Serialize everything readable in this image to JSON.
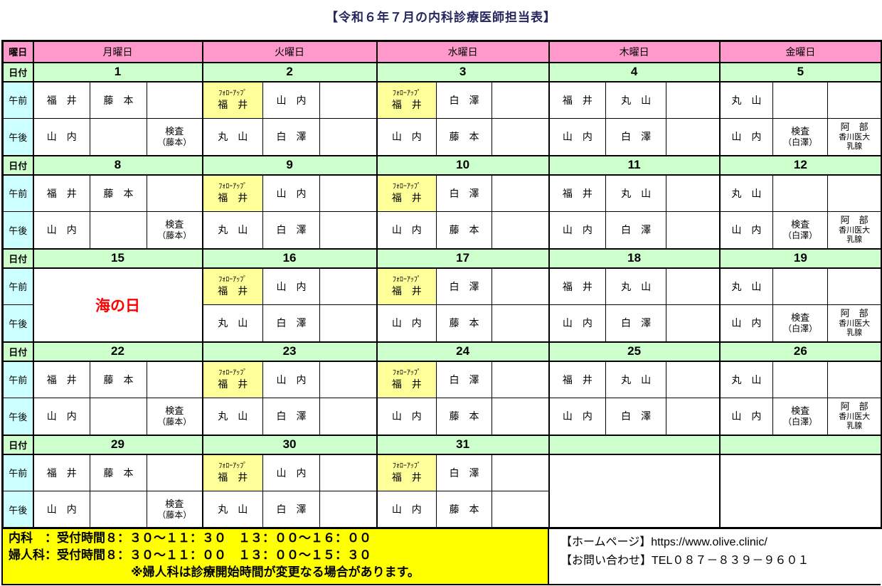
{
  "title": "【令和６年７月の内科診療医師担当表】",
  "labels": {
    "weekday": "曜日",
    "date": "日付",
    "am": "午前",
    "pm": "午後"
  },
  "weekday_headers": [
    "月曜日",
    "火曜日",
    "水曜日",
    "木曜日",
    "金曜日"
  ],
  "colors": {
    "header_pink": "#ff99cc",
    "date_green": "#ccffcc",
    "ampm_cyan": "#ccffff",
    "followup_yellow": "#ffff99",
    "footer_yellow": "#ffff00",
    "holiday_red": "#ff0000",
    "title_navy": "#26265e"
  },
  "weeks": [
    {
      "dates": [
        "1",
        "2",
        "3",
        "4",
        "5"
      ],
      "days": [
        {
          "am": [
            {
              "m": "福　井"
            },
            {
              "m": "藤　本"
            },
            {}
          ],
          "pm": [
            {
              "m": "山　内"
            },
            {},
            {
              "m": "検査",
              "s": "（藤本）"
            }
          ]
        },
        {
          "am": [
            {
              "t": "ﾌｫﾛｰｱｯﾌﾟ",
              "m": "福　井",
              "y": true
            },
            {
              "m": "山　内"
            },
            {}
          ],
          "pm": [
            {
              "m": "丸　山"
            },
            {
              "m": "白　澤"
            },
            {}
          ]
        },
        {
          "am": [
            {
              "t": "ﾌｫﾛｰｱｯﾌﾟ",
              "m": "福　井",
              "y": true
            },
            {
              "m": "白　澤"
            },
            {}
          ],
          "pm": [
            {
              "m": "山　内"
            },
            {
              "m": "藤　本"
            },
            {}
          ]
        },
        {
          "am": [
            {
              "m": "福　井"
            },
            {
              "m": "丸　山"
            },
            {}
          ],
          "pm": [
            {
              "m": "山　内"
            },
            {
              "m": "白　澤"
            },
            {}
          ]
        },
        {
          "am": [
            {
              "m": "丸　山"
            },
            {},
            {}
          ],
          "pm": [
            {
              "m": "山　内"
            },
            {
              "m": "検査",
              "s": "（白澤）"
            },
            {
              "lines": [
                "阿　部",
                "香川医大",
                "乳腺"
              ]
            }
          ]
        }
      ]
    },
    {
      "dates": [
        "8",
        "9",
        "10",
        "11",
        "12"
      ],
      "days": [
        {
          "am": [
            {
              "m": "福　井"
            },
            {
              "m": "藤　本"
            },
            {}
          ],
          "pm": [
            {
              "m": "山　内"
            },
            {},
            {
              "m": "検査",
              "s": "（藤本）"
            }
          ]
        },
        {
          "am": [
            {
              "t": "ﾌｫﾛｰｱｯﾌﾟ",
              "m": "福　井",
              "y": true
            },
            {
              "m": "山　内"
            },
            {}
          ],
          "pm": [
            {
              "m": "丸　山"
            },
            {
              "m": "白　澤"
            },
            {}
          ]
        },
        {
          "am": [
            {
              "t": "ﾌｫﾛｰｱｯﾌﾟ",
              "m": "福　井",
              "y": true
            },
            {
              "m": "白　澤"
            },
            {}
          ],
          "pm": [
            {
              "m": "山　内"
            },
            {
              "m": "藤　本"
            },
            {}
          ]
        },
        {
          "am": [
            {
              "m": "福　井"
            },
            {
              "m": "丸　山"
            },
            {}
          ],
          "pm": [
            {
              "m": "山　内"
            },
            {
              "m": "白　澤"
            },
            {}
          ]
        },
        {
          "am": [
            {
              "m": "丸　山"
            },
            {},
            {}
          ],
          "pm": [
            {
              "m": "山　内"
            },
            {
              "m": "検査",
              "s": "（白澤）"
            },
            {
              "lines": [
                "阿　部",
                "香川医大",
                "乳腺"
              ]
            }
          ]
        }
      ]
    },
    {
      "dates": [
        "15",
        "16",
        "17",
        "18",
        "19"
      ],
      "days": [
        {
          "holiday": "海の日"
        },
        {
          "am": [
            {
              "t": "ﾌｫﾛｰｱｯﾌﾟ",
              "m": "福　井",
              "y": true
            },
            {
              "m": "山　内"
            },
            {}
          ],
          "pm": [
            {
              "m": "丸　山"
            },
            {
              "m": "白　澤"
            },
            {}
          ]
        },
        {
          "am": [
            {
              "t": "ﾌｫﾛｰｱｯﾌﾟ",
              "m": "福　井",
              "y": true
            },
            {
              "m": "白　澤"
            },
            {}
          ],
          "pm": [
            {
              "m": "山　内"
            },
            {
              "m": "藤　本"
            },
            {}
          ]
        },
        {
          "am": [
            {
              "m": "福　井"
            },
            {
              "m": "丸　山"
            },
            {}
          ],
          "pm": [
            {
              "m": "山　内"
            },
            {
              "m": "白　澤"
            },
            {}
          ]
        },
        {
          "am": [
            {
              "m": "丸　山"
            },
            {},
            {}
          ],
          "pm": [
            {
              "m": "山　内"
            },
            {
              "m": "検査",
              "s": "（白澤）"
            },
            {
              "lines": [
                "阿　部",
                "香川医大",
                "乳腺"
              ]
            }
          ]
        }
      ]
    },
    {
      "dates": [
        "22",
        "23",
        "24",
        "25",
        "26"
      ],
      "days": [
        {
          "am": [
            {
              "m": "福　井"
            },
            {
              "m": "藤　本"
            },
            {}
          ],
          "pm": [
            {
              "m": "山　内"
            },
            {},
            {
              "m": "検査",
              "s": "（藤本）"
            }
          ]
        },
        {
          "am": [
            {
              "t": "ﾌｫﾛｰｱｯﾌﾟ",
              "m": "福　井",
              "y": true
            },
            {
              "m": "山　内"
            },
            {}
          ],
          "pm": [
            {
              "m": "丸　山"
            },
            {
              "m": "白　澤"
            },
            {}
          ]
        },
        {
          "am": [
            {
              "t": "ﾌｫﾛｰｱｯﾌﾟ",
              "m": "福　井",
              "y": true
            },
            {
              "m": "白　澤"
            },
            {}
          ],
          "pm": [
            {
              "m": "山　内"
            },
            {
              "m": "藤　本"
            },
            {}
          ]
        },
        {
          "am": [
            {
              "m": "福　井"
            },
            {
              "m": "丸　山"
            },
            {}
          ],
          "pm": [
            {
              "m": "山　内"
            },
            {
              "m": "白　澤"
            },
            {}
          ]
        },
        {
          "am": [
            {
              "m": "丸　山"
            },
            {},
            {}
          ],
          "pm": [
            {
              "m": "山　内"
            },
            {
              "m": "検査",
              "s": "（白澤）"
            },
            {
              "lines": [
                "阿　部",
                "香川医大",
                "乳腺"
              ]
            }
          ]
        }
      ]
    },
    {
      "dates": [
        "29",
        "30",
        "31",
        "",
        ""
      ],
      "days": [
        {
          "am": [
            {
              "m": "福　井"
            },
            {
              "m": "藤　本"
            },
            {}
          ],
          "pm": [
            {
              "m": "山　内"
            },
            {},
            {
              "m": "検査",
              "s": "（藤本）"
            }
          ]
        },
        {
          "am": [
            {
              "t": "ﾌｫﾛｰｱｯﾌﾟ",
              "m": "福　井",
              "y": true
            },
            {
              "m": "山　内"
            },
            {}
          ],
          "pm": [
            {
              "m": "丸　山"
            },
            {
              "m": "白　澤"
            },
            {}
          ]
        },
        {
          "am": [
            {
              "t": "ﾌｫﾛｰｱｯﾌﾟ",
              "m": "福　井",
              "y": true
            },
            {
              "m": "白　澤"
            },
            {}
          ],
          "pm": [
            {
              "m": "山　内"
            },
            {
              "m": "藤　本"
            },
            {}
          ]
        },
        {
          "merged_empty": true
        },
        {
          "merged_empty": true
        }
      ]
    }
  ],
  "footer": {
    "left_lines": [
      "内科　：受付時間８：３０～１１：３０　１３：００～１６：００",
      "婦人科：受付時間８：３０～１１：００　１３：００～１５：３０",
      "※婦人科は診療開始時間が変更なる場合があります。"
    ],
    "right_lines": [
      "【ホームページ】https://www.olive.clinic/",
      "【お問い合わせ】TEL０８７－８３９－９６０１"
    ]
  }
}
